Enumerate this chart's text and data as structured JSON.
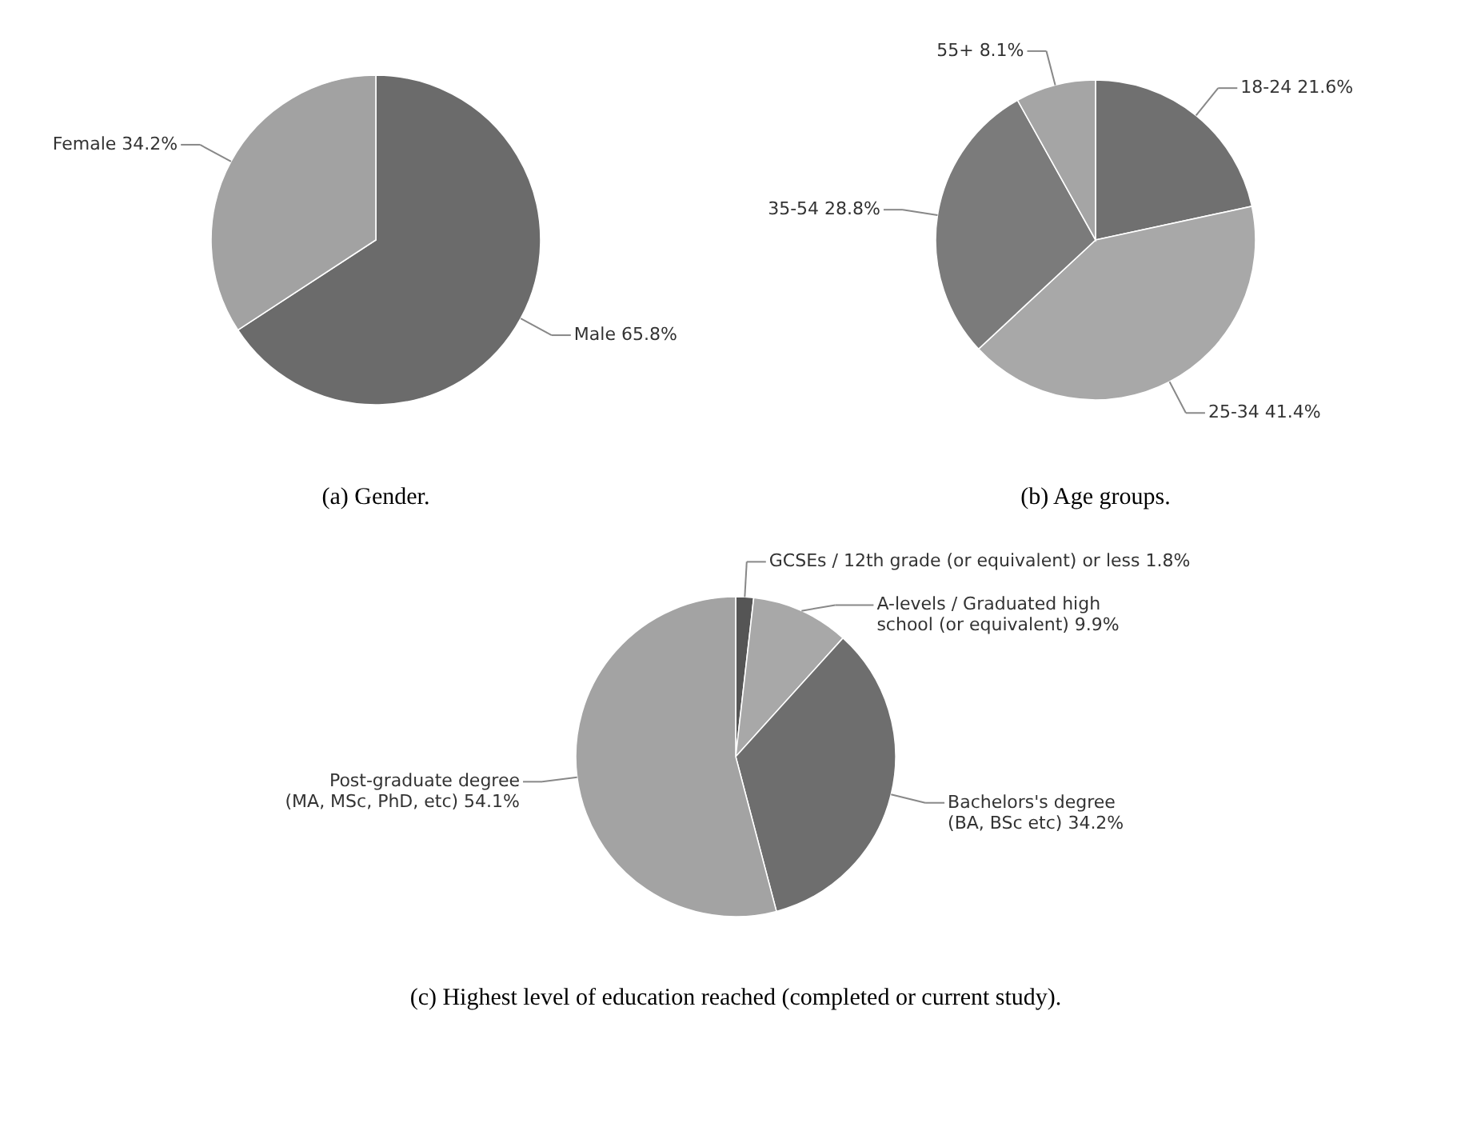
{
  "chart_data": [
    {
      "type": "pie",
      "title": "(a)  Gender.",
      "categories": [
        "Male",
        "Female"
      ],
      "values": [
        65.8,
        34.2
      ],
      "colors": [
        "#6b6b6b",
        "#a2a2a2"
      ],
      "value_labels": [
        "65.8%",
        "34.2%"
      ]
    },
    {
      "type": "pie",
      "title": "(b)  Age groups.",
      "categories": [
        "18-24",
        "25-34",
        "35-54",
        "55+"
      ],
      "values": [
        21.6,
        41.4,
        28.8,
        8.1
      ],
      "colors": [
        "#707070",
        "#a8a8a8",
        "#7b7b7b",
        "#a5a5a5"
      ],
      "value_labels": [
        "21.6%",
        "41.4%",
        "28.8%",
        "8.1%"
      ]
    },
    {
      "type": "pie",
      "title": "(c)  Highest level of education reached (completed or current study).",
      "categories": [
        "GCSEs / 12th grade (or equivalent) or less",
        "A-levels / Graduated high\nschool (or equivalent)",
        "Bachelors's degree\n(BA, BSc etc)",
        "Post-graduate degree\n(MA, MSc, PhD, etc)"
      ],
      "values": [
        1.8,
        9.9,
        34.2,
        54.1
      ],
      "colors": [
        "#555555",
        "#a8a8a8",
        "#6e6e6e",
        "#a3a3a3"
      ],
      "value_labels": [
        "1.8%",
        "9.9%",
        "34.2%",
        "54.1%"
      ]
    }
  ]
}
